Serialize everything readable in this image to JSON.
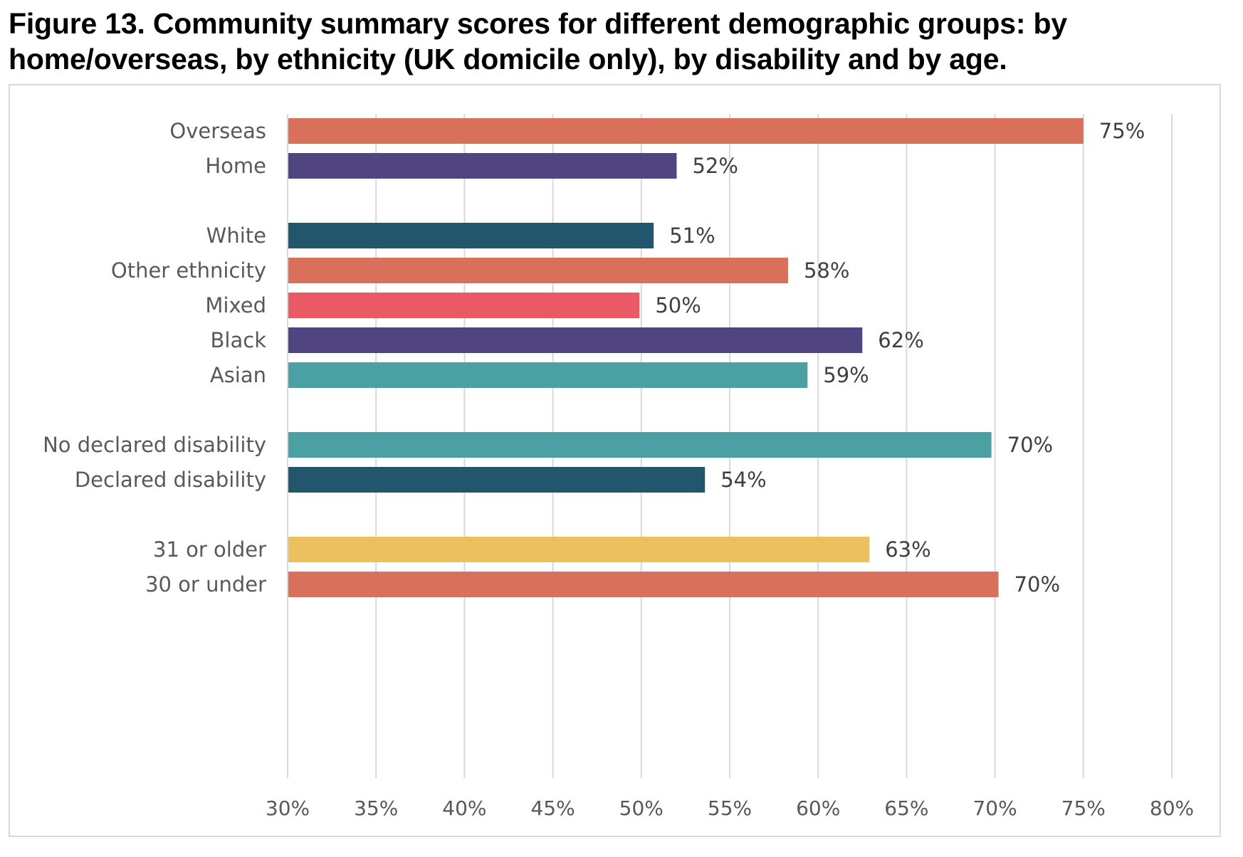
{
  "figure": {
    "title": "Figure 13. Community summary scores for different demographic groups: by home/overseas, by ethnicity (UK domicile only), by disability and by age."
  },
  "chart_data": {
    "type": "bar",
    "orientation": "horizontal",
    "title": "Figure 13. Community summary scores for different demographic groups: by home/overseas, by ethnicity (UK domicile only), by disability and by age.",
    "xlabel": "",
    "ylabel": "",
    "xlim": [
      30,
      80
    ],
    "x_ticks": [
      "30%",
      "35%",
      "40%",
      "45%",
      "50%",
      "55%",
      "60%",
      "65%",
      "70%",
      "75%",
      "80%"
    ],
    "x_tick_values": [
      30,
      35,
      40,
      45,
      50,
      55,
      60,
      65,
      70,
      75,
      80
    ],
    "grid": "vertical",
    "legend": "none",
    "groups": [
      {
        "name": "Home/overseas",
        "bars": [
          {
            "label": "Overseas",
            "value": 75,
            "value_label": "75%",
            "color": "#d9705c"
          },
          {
            "label": "Home",
            "value": 52,
            "value_label": "52%",
            "color": "#514581"
          }
        ]
      },
      {
        "name": "Ethnicity (UK domicile only)",
        "bars": [
          {
            "label": "White",
            "value": 50.7,
            "value_label": "51%",
            "color": "#23566d"
          },
          {
            "label": "Other ethnicity",
            "value": 58.3,
            "value_label": "58%",
            "color": "#d9705c"
          },
          {
            "label": "Mixed",
            "value": 49.9,
            "value_label": "50%",
            "color": "#e95a65"
          },
          {
            "label": "Black",
            "value": 62.5,
            "value_label": "62%",
            "color": "#514581"
          },
          {
            "label": "Asian",
            "value": 59.4,
            "value_label": "59%",
            "color": "#4ba0a4"
          }
        ]
      },
      {
        "name": "Disability",
        "bars": [
          {
            "label": "No declared disability",
            "value": 69.8,
            "value_label": "70%",
            "color": "#4ba0a4"
          },
          {
            "label": "Declared disability",
            "value": 53.6,
            "value_label": "54%",
            "color": "#23566d"
          }
        ]
      },
      {
        "name": "Age",
        "bars": [
          {
            "label": "31 or older",
            "value": 62.9,
            "value_label": "63%",
            "color": "#ecc05f"
          },
          {
            "label": "30 or under",
            "value": 70.2,
            "value_label": "70%",
            "color": "#d9705c"
          }
        ]
      }
    ]
  }
}
